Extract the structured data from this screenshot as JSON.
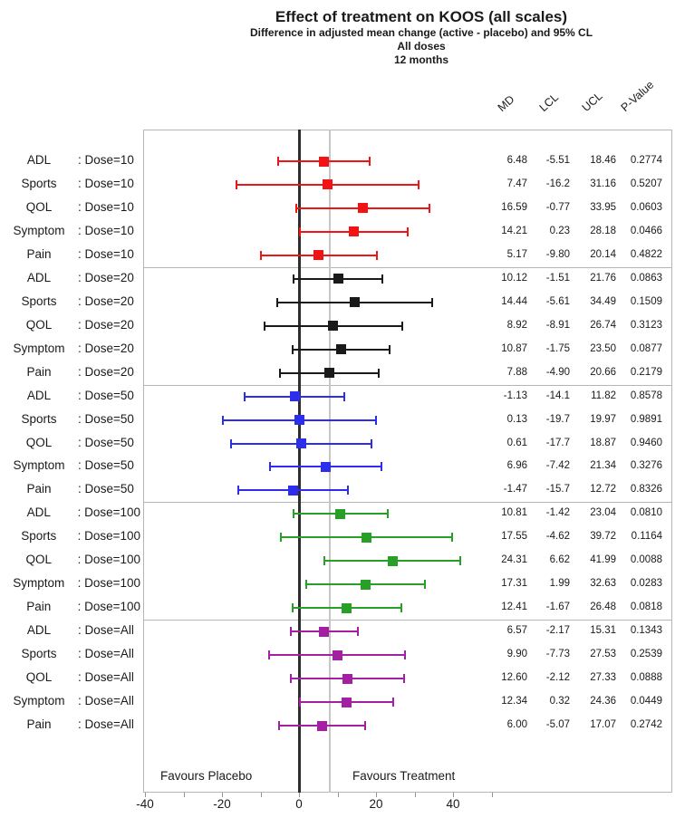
{
  "figure": {
    "title": "Effect of treatment on KOOS (all scales)",
    "subtitle1": "Difference in adjusted mean change (active - placebo) and 95% CL",
    "subtitle2": "All doses",
    "subtitle3": "12 months"
  },
  "chart_data": {
    "type": "scatter",
    "variant": "forest-plot",
    "title": "Effect of treatment on KOOS (all scales)",
    "subtitles": [
      "Difference in adjusted mean change (active - placebo) and 95% CL",
      "All doses",
      "12 months"
    ],
    "columns": [
      "MD",
      "LCL",
      "UCL",
      "P-Value"
    ],
    "favours_left": "Favours Placebo",
    "favours_right": "Favours Treatment",
    "x_axis": {
      "labeled_ticks": [
        -40,
        -20,
        0,
        20,
        40
      ],
      "minor_tick_step": 10,
      "minor_tick_min": -40,
      "minor_tick_max": 50,
      "xlim": [
        -40,
        57
      ]
    },
    "reference_lines": [
      {
        "x": 0,
        "style": "strong",
        "color": "#2d2d2d"
      },
      {
        "x": 8,
        "style": "light",
        "color": "#c6c6c6"
      }
    ],
    "grid": false,
    "legend": false,
    "groups": [
      {
        "dose": "Dose=10",
        "color": "#f01414",
        "rows": [
          {
            "scale": "ADL",
            "md": "6.48",
            "lcl": "-5.51",
            "ucl": "18.46",
            "p": "0.2774"
          },
          {
            "scale": "Sports",
            "md": "7.47",
            "lcl": "-16.2",
            "ucl": "31.16",
            "p": "0.5207"
          },
          {
            "scale": "QOL",
            "md": "16.59",
            "lcl": "-0.77",
            "ucl": "33.95",
            "p": "0.0603"
          },
          {
            "scale": "Symptom",
            "md": "14.21",
            "lcl": "0.23",
            "ucl": "28.18",
            "p": "0.0466"
          },
          {
            "scale": "Pain",
            "md": "5.17",
            "lcl": "-9.80",
            "ucl": "20.14",
            "p": "0.4822"
          }
        ]
      },
      {
        "dose": "Dose=20",
        "color": "#1a1a1a",
        "rows": [
          {
            "scale": "ADL",
            "md": "10.12",
            "lcl": "-1.51",
            "ucl": "21.76",
            "p": "0.0863"
          },
          {
            "scale": "Sports",
            "md": "14.44",
            "lcl": "-5.61",
            "ucl": "34.49",
            "p": "0.1509"
          },
          {
            "scale": "QOL",
            "md": "8.92",
            "lcl": "-8.91",
            "ucl": "26.74",
            "p": "0.3123"
          },
          {
            "scale": "Symptom",
            "md": "10.87",
            "lcl": "-1.75",
            "ucl": "23.50",
            "p": "0.0877"
          },
          {
            "scale": "Pain",
            "md": "7.88",
            "lcl": "-4.90",
            "ucl": "20.66",
            "p": "0.2179"
          }
        ]
      },
      {
        "dose": "Dose=50",
        "color": "#2d2dec",
        "rows": [
          {
            "scale": "ADL",
            "md": "-1.13",
            "lcl": "-14.1",
            "ucl": "11.82",
            "p": "0.8578"
          },
          {
            "scale": "Sports",
            "md": "0.13",
            "lcl": "-19.7",
            "ucl": "19.97",
            "p": "0.9891"
          },
          {
            "scale": "QOL",
            "md": "0.61",
            "lcl": "-17.7",
            "ucl": "18.87",
            "p": "0.9460"
          },
          {
            "scale": "Symptom",
            "md": "6.96",
            "lcl": "-7.42",
            "ucl": "21.34",
            "p": "0.3276"
          },
          {
            "scale": "Pain",
            "md": "-1.47",
            "lcl": "-15.7",
            "ucl": "12.72",
            "p": "0.8326"
          }
        ]
      },
      {
        "dose": "Dose=100",
        "color": "#28a028",
        "rows": [
          {
            "scale": "ADL",
            "md": "10.81",
            "lcl": "-1.42",
            "ucl": "23.04",
            "p": "0.0810"
          },
          {
            "scale": "Sports",
            "md": "17.55",
            "lcl": "-4.62",
            "ucl": "39.72",
            "p": "0.1164"
          },
          {
            "scale": "QOL",
            "md": "24.31",
            "lcl": "6.62",
            "ucl": "41.99",
            "p": "0.0088"
          },
          {
            "scale": "Symptom",
            "md": "17.31",
            "lcl": "1.99",
            "ucl": "32.63",
            "p": "0.0283"
          },
          {
            "scale": "Pain",
            "md": "12.41",
            "lcl": "-1.67",
            "ucl": "26.48",
            "p": "0.0818"
          }
        ]
      },
      {
        "dose": "Dose=All",
        "color": "#a320a3",
        "rows": [
          {
            "scale": "ADL",
            "md": "6.57",
            "lcl": "-2.17",
            "ucl": "15.31",
            "p": "0.1343"
          },
          {
            "scale": "Sports",
            "md": "9.90",
            "lcl": "-7.73",
            "ucl": "27.53",
            "p": "0.2539"
          },
          {
            "scale": "QOL",
            "md": "12.60",
            "lcl": "-2.12",
            "ucl": "27.33",
            "p": "0.0888"
          },
          {
            "scale": "Symptom",
            "md": "12.34",
            "lcl": "0.32",
            "ucl": "24.36",
            "p": "0.0449"
          },
          {
            "scale": "Pain",
            "md": "6.00",
            "lcl": "-5.07",
            "ucl": "17.07",
            "p": "0.2742"
          }
        ]
      }
    ]
  }
}
